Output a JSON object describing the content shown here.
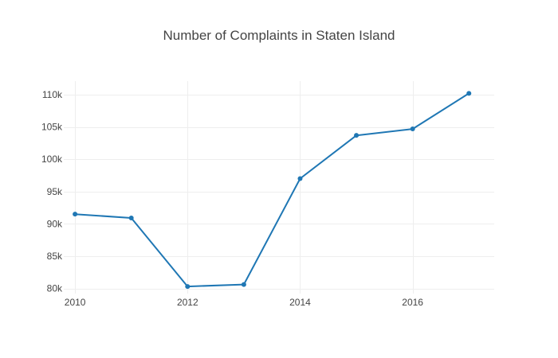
{
  "chart_data": {
    "type": "line",
    "title": "Number of Complaints in Staten Island",
    "xlabel": "",
    "ylabel": "",
    "x": [
      2010,
      2011,
      2012,
      2013,
      2014,
      2015,
      2016,
      2017
    ],
    "series": [
      {
        "values": [
          91500,
          90900,
          80300,
          80600,
          97000,
          103700,
          104700,
          110200
        ]
      }
    ],
    "x_ticks": [
      2010,
      2012,
      2014,
      2016
    ],
    "x_tick_labels": [
      "2010",
      "2012",
      "2014",
      "2016"
    ],
    "y_ticks": [
      80000,
      85000,
      90000,
      95000,
      100000,
      105000,
      110000
    ],
    "y_tick_labels": [
      "80k",
      "85k",
      "90k",
      "95k",
      "100k",
      "105k",
      "110k"
    ],
    "xlim": [
      2009.8,
      2017.45
    ],
    "ylim": [
      79200,
      112100
    ],
    "grid": true,
    "colors": {
      "line": "#1f77b4",
      "grid": "#eeeeee",
      "text": "#444444"
    }
  }
}
